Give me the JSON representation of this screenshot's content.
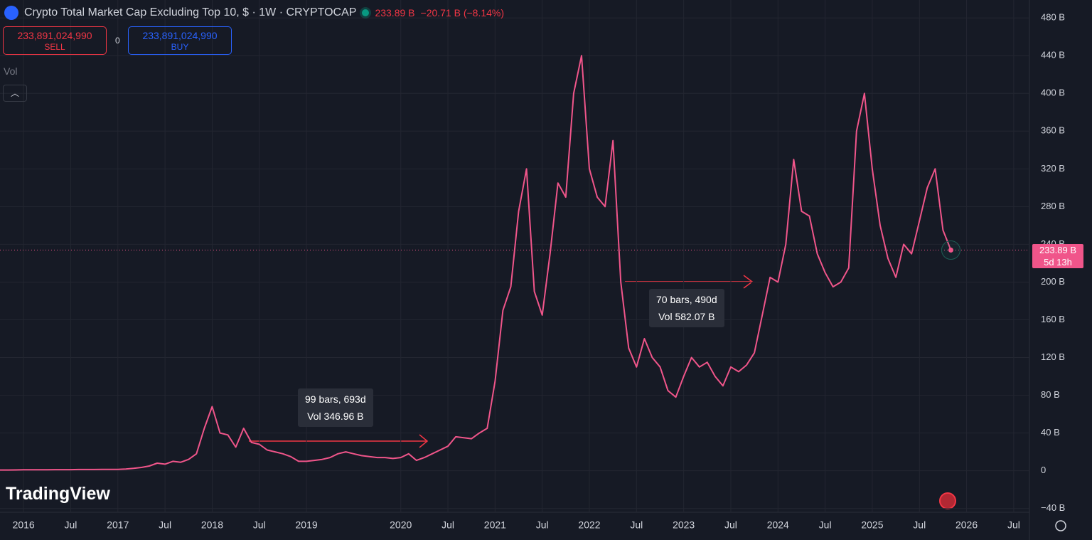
{
  "chart_data": {
    "type": "line",
    "title": "Crypto Total Market Cap Excluding Top 10, $ · 1W · CRYPTOCAP",
    "last": "233.89 B",
    "change": "−20.71 B (−8.14%)",
    "sell": {
      "price": "233,891,024,990",
      "label": "SELL"
    },
    "spread": 0,
    "buy": {
      "price": "233,891,024,990",
      "label": "BUY"
    },
    "vol_label": "Vol",
    "brand": "TradingView",
    "annotations": [
      {
        "bars": "99 bars, 693d",
        "vol": "Vol 346.96 B"
      },
      {
        "bars": "70 bars, 490d",
        "vol": "Vol 582.07 B"
      }
    ],
    "price_label": {
      "value": 233.89,
      "label": "233.89 B",
      "countdown": "5d 13h"
    },
    "color": "#f0558a",
    "x": [
      "2015-10",
      "2015-11",
      "2015-12",
      "2016-01",
      "2016-02",
      "2016-03",
      "2016-04",
      "2016-05",
      "2016-06",
      "2016-07",
      "2016-08",
      "2016-09",
      "2016-10",
      "2016-11",
      "2016-12",
      "2017-01",
      "2017-02",
      "2017-03",
      "2017-04",
      "2017-05",
      "2017-06",
      "2017-07",
      "2017-08",
      "2017-09",
      "2017-10",
      "2017-11",
      "2017-12",
      "2018-01",
      "2018-02",
      "2018-03",
      "2018-04",
      "2018-05",
      "2018-06",
      "2018-07",
      "2018-08",
      "2018-09",
      "2018-10",
      "2018-11",
      "2018-12",
      "2019-01",
      "2019-02",
      "2019-03",
      "2019-04",
      "2019-05",
      "2019-06",
      "2019-07",
      "2019-08",
      "2019-09",
      "2019-10",
      "2019-11",
      "2019-12",
      "2020-01",
      "2020-02",
      "2020-03",
      "2020-04",
      "2020-05",
      "2020-06",
      "2020-07",
      "2020-08",
      "2020-09",
      "2020-10",
      "2020-11",
      "2020-12",
      "2021-01",
      "2021-02",
      "2021-03",
      "2021-04",
      "2021-05",
      "2021-06",
      "2021-07",
      "2021-08",
      "2021-09",
      "2021-10",
      "2021-11",
      "2021-12",
      "2022-01",
      "2022-02",
      "2022-03",
      "2022-04",
      "2022-05",
      "2022-06",
      "2022-07",
      "2022-08",
      "2022-09",
      "2022-10",
      "2022-11",
      "2022-12",
      "2023-01",
      "2023-02",
      "2023-03",
      "2023-04",
      "2023-05",
      "2023-06",
      "2023-07",
      "2023-08",
      "2023-09",
      "2023-10",
      "2023-11",
      "2023-12",
      "2024-01",
      "2024-02",
      "2024-03",
      "2024-04",
      "2024-05",
      "2024-06",
      "2024-07",
      "2024-08",
      "2024-09",
      "2024-10",
      "2024-11",
      "2024-12",
      "2025-01",
      "2025-02",
      "2025-03",
      "2025-04",
      "2025-05",
      "2025-06",
      "2025-07",
      "2025-08",
      "2025-09",
      "2025-10",
      "2025-11"
    ],
    "values": [
      0.8,
      0.8,
      0.9,
      1,
      1,
      1.1,
      1.1,
      1.2,
      1.2,
      1.2,
      1.3,
      1.3,
      1.3,
      1.4,
      1.4,
      1.5,
      1.8,
      2.5,
      3.5,
      5,
      8,
      7,
      10,
      9,
      12,
      18,
      45,
      68,
      40,
      38,
      25,
      45,
      30,
      28,
      22,
      20,
      18,
      15,
      10,
      10,
      11,
      12,
      14,
      18,
      20,
      18,
      16,
      15,
      14,
      14,
      13,
      14,
      18,
      11,
      14,
      18,
      22,
      26,
      36,
      35,
      34,
      40,
      45,
      95,
      170,
      195,
      275,
      320,
      190,
      165,
      230,
      305,
      290,
      400,
      440,
      320,
      290,
      280,
      350,
      200,
      130,
      110,
      140,
      120,
      110,
      85,
      78,
      100,
      120,
      110,
      115,
      100,
      90,
      110,
      105,
      112,
      125,
      165,
      205,
      200,
      240,
      330,
      275,
      270,
      230,
      210,
      195,
      200,
      215,
      360,
      400,
      320,
      260,
      225,
      205,
      240,
      230,
      265,
      300,
      320,
      255,
      233.89
    ],
    "xlim": [
      "2015-10",
      "2026-09"
    ],
    "xticks": [
      {
        "value": "2016-01",
        "label": "2016"
      },
      {
        "value": "2016-07",
        "label": "Jul"
      },
      {
        "value": "2017-01",
        "label": "2017"
      },
      {
        "value": "2017-07",
        "label": "Jul"
      },
      {
        "value": "2018-01",
        "label": "2018"
      },
      {
        "value": "2018-07",
        "label": "Jul"
      },
      {
        "value": "2019-01",
        "label": "2019"
      },
      {
        "value": "2020-01",
        "label": "2020"
      },
      {
        "value": "2020-07",
        "label": "Jul"
      },
      {
        "value": "2021-01",
        "label": "2021"
      },
      {
        "value": "2021-07",
        "label": "Jul"
      },
      {
        "value": "2022-01",
        "label": "2022"
      },
      {
        "value": "2022-07",
        "label": "Jul"
      },
      {
        "value": "2023-01",
        "label": "2023"
      },
      {
        "value": "2023-07",
        "label": "Jul"
      },
      {
        "value": "2024-01",
        "label": "2024"
      },
      {
        "value": "2024-07",
        "label": "Jul"
      },
      {
        "value": "2025-01",
        "label": "2025"
      },
      {
        "value": "2025-07",
        "label": "Jul"
      },
      {
        "value": "2026-01",
        "label": "2026"
      },
      {
        "value": "2026-07",
        "label": "Jul"
      }
    ],
    "ylim": [
      -44,
      499
    ],
    "yticks": [
      {
        "value": -40,
        "label": "−40 B"
      },
      0,
      {
        "value": 40,
        "label": "40 B"
      },
      {
        "value": 80,
        "label": "80 B"
      },
      {
        "value": 120,
        "label": "120 B"
      },
      {
        "value": 160,
        "label": "160 B"
      },
      {
        "value": 200,
        "label": "200 B"
      },
      {
        "value": 240,
        "label": "240 B"
      },
      {
        "value": 280,
        "label": "280 B"
      },
      {
        "value": 320,
        "label": "320 B"
      },
      {
        "value": 360,
        "label": "360 B"
      },
      {
        "value": 400,
        "label": "400 B"
      },
      {
        "value": 440,
        "label": "440 B"
      },
      {
        "value": 480,
        "label": "480 B"
      }
    ],
    "grid": true
  }
}
